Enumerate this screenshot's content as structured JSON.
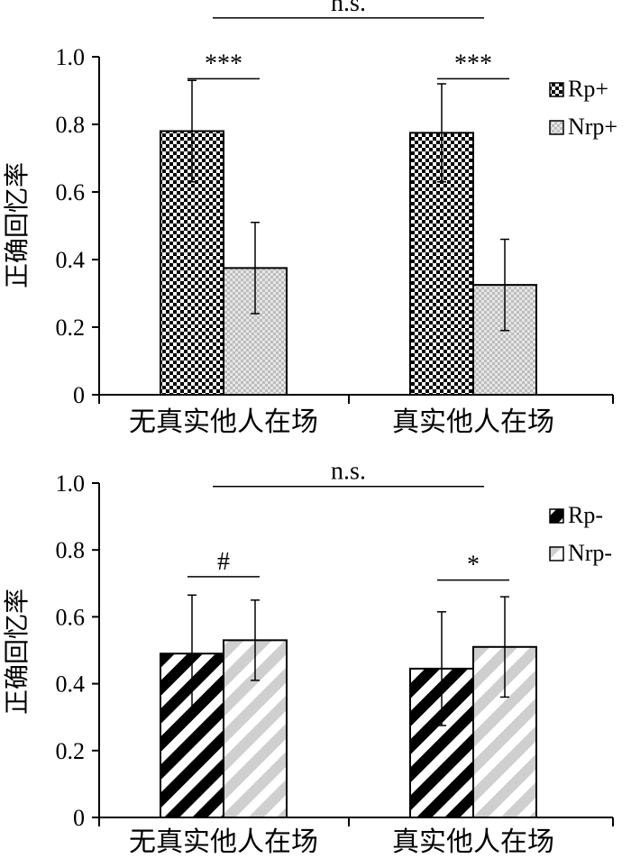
{
  "chart_data": [
    {
      "type": "bar",
      "ylabel": "正确回忆率",
      "ylim": [
        0,
        1.0
      ],
      "yticks": [
        "0",
        "0.2",
        "0.4",
        "0.6",
        "0.8",
        "1.0"
      ],
      "categories": [
        "无真实他人在场",
        "真实他人在场"
      ],
      "series": [
        {
          "name": "Rp+",
          "values": [
            0.78,
            0.775
          ],
          "error": [
            0.15,
            0.145
          ]
        },
        {
          "name": "Nrp+",
          "values": [
            0.375,
            0.325
          ],
          "error": [
            0.135,
            0.135
          ]
        }
      ],
      "legend_position": "top-right",
      "annotations": [
        {
          "label": "***",
          "between": "within",
          "category": 0,
          "y": 0.935
        },
        {
          "label": "***",
          "between": "within",
          "category": 1,
          "y": 0.935
        },
        {
          "label": "n.s.",
          "between": "categories",
          "y": 1.115
        }
      ]
    },
    {
      "type": "bar",
      "ylabel": "正确回忆率",
      "ylim": [
        0,
        1.0
      ],
      "yticks": [
        "0",
        "0.2",
        "0.4",
        "0.6",
        "0.8",
        "1.0"
      ],
      "categories": [
        "无真实他人在场",
        "真实他人在场"
      ],
      "series": [
        {
          "name": "Rp-",
          "values": [
            0.49,
            0.445
          ],
          "error": [
            0.175,
            0.17
          ]
        },
        {
          "name": "Nrp-",
          "values": [
            0.53,
            0.51
          ],
          "error": [
            0.12,
            0.15
          ]
        }
      ],
      "legend_position": "top-right",
      "annotations": [
        {
          "label": "#",
          "between": "within",
          "category": 0,
          "y": 0.72
        },
        {
          "label": "*",
          "between": "within",
          "category": 1,
          "y": 0.71
        },
        {
          "label": "n.s.",
          "between": "categories",
          "y": 0.99
        }
      ]
    }
  ]
}
